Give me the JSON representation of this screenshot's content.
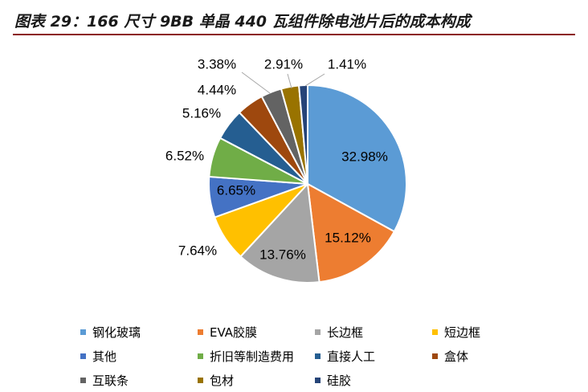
{
  "title": "图表 29：166 尺寸 9BB 单晶 440 瓦组件除电池片后的成本构成",
  "chart_data": {
    "type": "pie",
    "title": "",
    "start": "12 o'clock",
    "direction": "clockwise",
    "legend_position": "bottom",
    "slices": [
      {
        "label": "钢化玻璃",
        "value": 32.98,
        "text": "32.98%",
        "color": "#5b9bd5"
      },
      {
        "label": "EVA胶膜",
        "value": 15.12,
        "text": "15.12%",
        "color": "#ed7d31"
      },
      {
        "label": "长边框",
        "value": 13.76,
        "text": "13.76%",
        "color": "#a5a5a5"
      },
      {
        "label": "短边框",
        "value": 7.64,
        "text": "7.64%",
        "color": "#ffc000"
      },
      {
        "label": "其他",
        "value": 6.65,
        "text": "6.65%",
        "color": "#4472c4"
      },
      {
        "label": "折旧等制造费用",
        "value": 6.52,
        "text": "6.52%",
        "color": "#70ad47"
      },
      {
        "label": "直接人工",
        "value": 5.16,
        "text": "5.16%",
        "color": "#255e91"
      },
      {
        "label": "盒体",
        "value": 4.44,
        "text": "4.44%",
        "color": "#9e480e"
      },
      {
        "label": "互联条",
        "value": 3.38,
        "text": "3.38%",
        "color": "#636363"
      },
      {
        "label": "包材",
        "value": 2.91,
        "text": "2.91%",
        "color": "#997300"
      },
      {
        "label": "硅胶",
        "value": 1.41,
        "text": "1.41%",
        "color": "#264478"
      }
    ]
  }
}
